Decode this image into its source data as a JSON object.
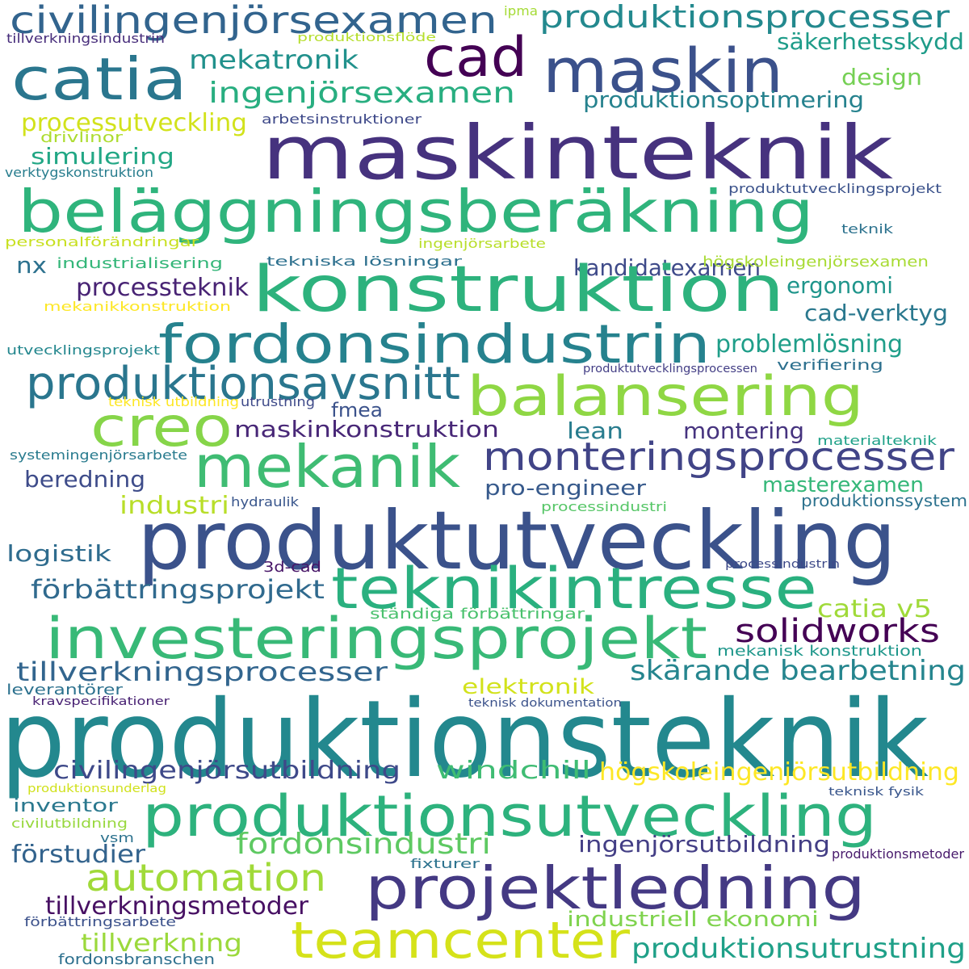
{
  "words": [
    {
      "text": "civilingenjörsexamen",
      "color": "#32648e"
    },
    {
      "text": "ipma",
      "color": "#a5db36"
    },
    {
      "text": "produktionsprocesser",
      "color": "#23898e"
    },
    {
      "text": "tillverkningsindustrin",
      "color": "#472d7b"
    },
    {
      "text": "produktionsflöde",
      "color": "#b5de2b"
    },
    {
      "text": "säkerhetsskydd",
      "color": "#1e9c89"
    },
    {
      "text": "cad",
      "color": "#440154"
    },
    {
      "text": "catia",
      "color": "#2a768e"
    },
    {
      "text": "maskin",
      "color": "#3b518b"
    },
    {
      "text": "mekatronik",
      "color": "#21918c"
    },
    {
      "text": "design",
      "color": "#75d054"
    },
    {
      "text": "ingenjörsexamen",
      "color": "#28ae80"
    },
    {
      "text": "produktionsoptimering",
      "color": "#26828e"
    },
    {
      "text": "processutveckling",
      "color": "#d2e21b"
    },
    {
      "text": "arbetsinstruktioner",
      "color": "#3e4989"
    },
    {
      "text": "drivlinor",
      "color": "#addc30"
    },
    {
      "text": "maskinteknik",
      "color": "#46327e"
    },
    {
      "text": "simulering",
      "color": "#22a785"
    },
    {
      "text": "verktygskonstruktion",
      "color": "#287d8e"
    },
    {
      "text": "produktutvecklingsprojekt",
      "color": "#3b528b"
    },
    {
      "text": "beläggningsberäkning",
      "color": "#2fb47c"
    },
    {
      "text": "teknik",
      "color": "#2c728e"
    },
    {
      "text": "personalförändringar",
      "color": "#c8e020"
    },
    {
      "text": "ingenjörsarbete",
      "color": "#b8de29"
    },
    {
      "text": "kandidatexamen",
      "color": "#3e4a89"
    },
    {
      "text": "nx",
      "color": "#2c718e"
    },
    {
      "text": "industrialisering",
      "color": "#34b679"
    },
    {
      "text": "tekniska lösningar",
      "color": "#2d708e"
    },
    {
      "text": "högskoleingenjörsexamen",
      "color": "#a8db34"
    },
    {
      "text": "konstruktion",
      "color": "#2db27d"
    },
    {
      "text": "processteknik",
      "color": "#482374"
    },
    {
      "text": "ergonomi",
      "color": "#1f958b"
    },
    {
      "text": "mekanikkonstruktion",
      "color": "#fde725"
    },
    {
      "text": "cad-verktyg",
      "color": "#2a788e"
    },
    {
      "text": "fordonsindustrin",
      "color": "#26828e"
    },
    {
      "text": "problemlösning",
      "color": "#1f9e89"
    },
    {
      "text": "utvecklingsprojekt",
      "color": "#24878e"
    },
    {
      "text": "produktutvecklingsprocessen",
      "color": "#433e85"
    },
    {
      "text": "verifiering",
      "color": "#2d708e"
    },
    {
      "text": "produktionsavsnitt",
      "color": "#2a768e"
    },
    {
      "text": "balansering",
      "color": "#8fd744"
    },
    {
      "text": "teknisk utbildning",
      "color": "#fde725"
    },
    {
      "text": "utrustning",
      "color": "#3e4a89"
    },
    {
      "text": "creo",
      "color": "#86d549"
    },
    {
      "text": "fmea",
      "color": "#3b528b"
    },
    {
      "text": "maskinkonstruktion",
      "color": "#482777"
    },
    {
      "text": "lean",
      "color": "#287c8e"
    },
    {
      "text": "montering",
      "color": "#46337f"
    },
    {
      "text": "materialteknik",
      "color": "#1fa188"
    },
    {
      "text": "systemingenjörsarbete",
      "color": "#297b8e"
    },
    {
      "text": "mekanik",
      "color": "#3fbc73"
    },
    {
      "text": "monteringsprocesser",
      "color": "#414487"
    },
    {
      "text": "beredning",
      "color": "#3e4c8a"
    },
    {
      "text": "pro-engineer",
      "color": "#375a8c"
    },
    {
      "text": "masterexamen",
      "color": "#35b779"
    },
    {
      "text": "industri",
      "color": "#b8de29"
    },
    {
      "text": "hydraulik",
      "color": "#39568c"
    },
    {
      "text": "processindustri",
      "color": "#56c667"
    },
    {
      "text": "produktionssystem",
      "color": "#2c728e"
    },
    {
      "text": "produktutveckling",
      "color": "#3b528b"
    },
    {
      "text": "logistik",
      "color": "#2f6c8e"
    },
    {
      "text": "3d-cad",
      "color": "#481668"
    },
    {
      "text": "processindustrin",
      "color": "#3e4a89"
    },
    {
      "text": "förbättringsprojekt",
      "color": "#306a8e"
    },
    {
      "text": "teknikintresse",
      "color": "#2ab07f"
    },
    {
      "text": "catia v5",
      "color": "#a0da39"
    },
    {
      "text": "ständiga förbättringar",
      "color": "#4ac16d"
    },
    {
      "text": "investeringsprojekt",
      "color": "#38b977"
    },
    {
      "text": "solidworks",
      "color": "#440154"
    },
    {
      "text": "mekanisk konstruktion",
      "color": "#1f978b"
    },
    {
      "text": "tillverkningsprocesser",
      "color": "#32658e"
    },
    {
      "text": "skärande bearbetning",
      "color": "#25858e"
    },
    {
      "text": "leverantörer",
      "color": "#2c718e"
    },
    {
      "text": "elektronik",
      "color": "#d2e21b"
    },
    {
      "text": "kravspecifikationer",
      "color": "#482173"
    },
    {
      "text": "teknisk dokumentation",
      "color": "#3b528b"
    },
    {
      "text": "produktionsteknik",
      "color": "#23888e"
    },
    {
      "text": "civilingenjörsutbildning",
      "color": "#3e4989"
    },
    {
      "text": "windchill",
      "color": "#3fbc73"
    },
    {
      "text": "högskoleingenjörsutbildning",
      "color": "#fde725"
    },
    {
      "text": "produktionsunderlag",
      "color": "#d0e11c"
    },
    {
      "text": "teknisk fysik",
      "color": "#39568c"
    },
    {
      "text": "inventor",
      "color": "#2a788e"
    },
    {
      "text": "produktionsutveckling",
      "color": "#2db27d"
    },
    {
      "text": "civilutbildning",
      "color": "#98d83e"
    },
    {
      "text": "vsm",
      "color": "#2c728e"
    },
    {
      "text": "fordonsindustri",
      "color": "#5ec962"
    },
    {
      "text": "ingenjörsutbildning",
      "color": "#433e85"
    },
    {
      "text": "förstudier",
      "color": "#33638d"
    },
    {
      "text": "produktionsmetoder",
      "color": "#481a6c"
    },
    {
      "text": "fixturer",
      "color": "#2c728e"
    },
    {
      "text": "automation",
      "color": "#a0da39"
    },
    {
      "text": "projektledning",
      "color": "#443983"
    },
    {
      "text": "tillverkningsmetoder",
      "color": "#471063"
    },
    {
      "text": "förbättringsarbete",
      "color": "#3b518b"
    },
    {
      "text": "industriell ekonomi",
      "color": "#7fd34e"
    },
    {
      "text": "tillverkning",
      "color": "#9bd93c"
    },
    {
      "text": "teamcenter",
      "color": "#d5e21a"
    },
    {
      "text": "produktionsutrustning",
      "color": "#1fa088"
    },
    {
      "text": "fordonsbranschen",
      "color": "#2d708e"
    }
  ]
}
